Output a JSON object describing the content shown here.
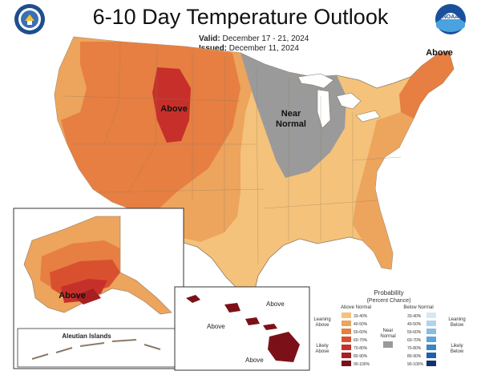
{
  "title": "6-10 Day Temperature Outlook",
  "valid_label": "Valid:",
  "valid_dates": "December 17 - 21, 2024",
  "issued_label": "Issued:",
  "issued_date": "December 11, 2024",
  "logos": {
    "left": "commerce-seal-icon",
    "right": "noaa-logo-icon"
  },
  "map_labels": {
    "above_central": "Above",
    "near_normal_1": "Near",
    "near_normal_2": "Normal",
    "above_northeast": "Above",
    "above_alaska": "Above",
    "aleutian": "Aleutian Islands",
    "hawaii_above_1": "Above",
    "hawaii_above_2": "Above",
    "hawaii_above_3": "Above"
  },
  "legend": {
    "title_1": "Probability",
    "title_2": "(Percent Chance)",
    "above_header": "Above Normal",
    "below_header": "Below Normal",
    "leaning_above_1": "Leaning",
    "leaning_above_2": "Above",
    "likely_above_1": "Likely",
    "likely_above_2": "Above",
    "near_normal_1": "Near",
    "near_normal_2": "Normal",
    "leaning_below_1": "Leaning",
    "leaning_below_2": "Below",
    "likely_below_1": "Likely",
    "likely_below_2": "Below",
    "ranges": [
      "33-40%",
      "40-50%",
      "50-60%",
      "60-70%",
      "70-80%",
      "80-90%",
      "90-100%"
    ],
    "above_colors": [
      "#f4c27a",
      "#eda45c",
      "#e67f41",
      "#d9502f",
      "#c7302a",
      "#a51f23",
      "#7c1018"
    ],
    "below_colors": [
      "#d6e8f4",
      "#b2d3ec",
      "#88bde3",
      "#5ea4d6",
      "#3a86c4",
      "#215faa",
      "#14326f"
    ],
    "near_color": "#9a9a9a"
  }
}
